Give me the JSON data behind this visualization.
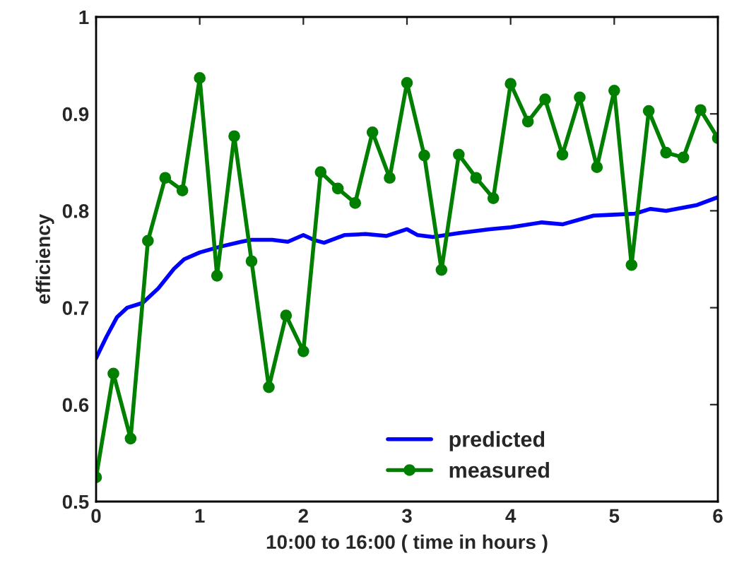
{
  "chart_data": {
    "type": "line",
    "xlabel": "10:00 to 16:00 ( time in hours )",
    "ylabel": "efficiency",
    "xlim": [
      0,
      6
    ],
    "ylim": [
      0.5,
      1
    ],
    "xticks": [
      0,
      1,
      2,
      3,
      4,
      5,
      6
    ],
    "yticks": [
      0.5,
      0.6,
      0.7,
      0.8,
      0.9,
      1
    ],
    "grid": false,
    "legend": "bottom",
    "series": [
      {
        "name": "predicted",
        "color": "#0000ff",
        "marker": "none",
        "x": [
          0,
          0.1,
          0.2,
          0.3,
          0.45,
          0.6,
          0.75,
          0.85,
          1,
          1.2,
          1.4,
          1.5,
          1.7,
          1.85,
          2,
          2.1,
          2.2,
          2.4,
          2.6,
          2.8,
          3,
          3.1,
          3.25,
          3.5,
          3.8,
          4,
          4.3,
          4.5,
          4.8,
          5,
          5.2,
          5.35,
          5.5,
          5.8,
          6
        ],
        "values": [
          0.648,
          0.67,
          0.69,
          0.7,
          0.705,
          0.72,
          0.74,
          0.75,
          0.757,
          0.763,
          0.768,
          0.77,
          0.77,
          0.768,
          0.775,
          0.77,
          0.767,
          0.775,
          0.776,
          0.774,
          0.781,
          0.775,
          0.773,
          0.777,
          0.781,
          0.783,
          0.788,
          0.786,
          0.795,
          0.796,
          0.797,
          0.802,
          0.8,
          0.806,
          0.814
        ]
      },
      {
        "name": "measured",
        "color": "#007f00",
        "marker": "circle",
        "x": [
          0,
          0.167,
          0.333,
          0.5,
          0.667,
          0.833,
          1,
          1.167,
          1.333,
          1.5,
          1.667,
          1.833,
          2,
          2.167,
          2.333,
          2.5,
          2.667,
          2.833,
          3,
          3.167,
          3.333,
          3.5,
          3.667,
          3.833,
          4,
          4.167,
          4.333,
          4.5,
          4.667,
          4.833,
          5,
          5.167,
          5.333,
          5.5,
          5.667,
          5.833,
          6
        ],
        "values": [
          0.525,
          0.632,
          0.565,
          0.769,
          0.834,
          0.821,
          0.937,
          0.733,
          0.877,
          0.748,
          0.618,
          0.692,
          0.655,
          0.84,
          0.823,
          0.808,
          0.881,
          0.834,
          0.932,
          0.857,
          0.739,
          0.858,
          0.834,
          0.813,
          0.931,
          0.892,
          0.915,
          0.858,
          0.917,
          0.845,
          0.924,
          0.744,
          0.903,
          0.86,
          0.855,
          0.904,
          0.875
        ]
      }
    ]
  }
}
